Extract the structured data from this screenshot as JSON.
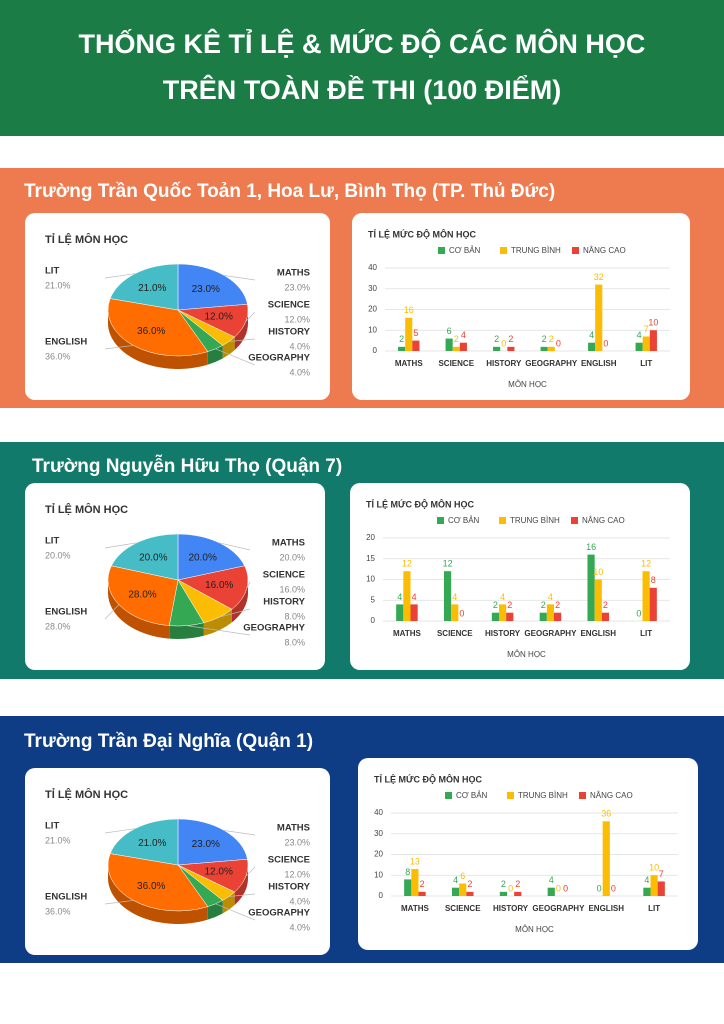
{
  "header": {
    "title_lines": [
      "THỐNG KÊ TỈ LỆ & MỨC ĐỘ CÁC MÔN HỌC",
      "TRÊN TOÀN ĐỀ THI (100 ĐIỂM)"
    ]
  },
  "sections": [
    {
      "title": "Trường Trần Quốc Toản 1, Hoa Lư, Bình Thọ (TP. Thủ Đức)"
    },
    {
      "title": "Trường Nguyễn Hữu Thọ (Quận 7)"
    },
    {
      "title": "Trường Trần Đại Nghĩa (Quận 1)"
    }
  ],
  "chart_data": [
    {
      "type": "pie",
      "title": "TỈ LỆ MÔN HỌC",
      "categories": [
        "MATHS",
        "SCIENCE",
        "HISTORY",
        "GEOGRAPHY",
        "ENGLISH",
        "LIT"
      ],
      "values": [
        23,
        12,
        4,
        4,
        36,
        21
      ],
      "value_labels": [
        "23.0%",
        "12.0%",
        "4.0%",
        "4.0%",
        "36.0%",
        "21.0%"
      ],
      "colors": [
        "#4285f4",
        "#ea4335",
        "#fbbc04",
        "#34a853",
        "#ff6d01",
        "#46bdc6"
      ]
    },
    {
      "type": "bar",
      "title": "TỈ LỆ MỨC ĐỘ MÔN HỌC",
      "x_label": "MÔN HỌC",
      "categories": [
        "MATHS",
        "SCIENCE",
        "HISTORY",
        "GEOGRAPHY",
        "ENGLISH",
        "LIT"
      ],
      "series": [
        {
          "name": "CƠ BẢN",
          "color": "#34a853",
          "values": [
            2,
            6,
            2,
            2,
            4,
            4
          ]
        },
        {
          "name": "TRUNG BÌNH",
          "color": "#fbbc04",
          "values": [
            16,
            2,
            0,
            2,
            32,
            7
          ]
        },
        {
          "name": "NÂNG CAO",
          "color": "#ea4335",
          "values": [
            5,
            4,
            2,
            0,
            0,
            10
          ]
        }
      ],
      "ylim": [
        0,
        40
      ],
      "yticks": [
        0,
        10,
        20,
        30,
        40
      ],
      "grid": true
    },
    {
      "type": "pie",
      "title": "TỈ LỆ MÔN HỌC",
      "categories": [
        "MATHS",
        "SCIENCE",
        "HISTORY",
        "GEOGRAPHY",
        "ENGLISH",
        "LIT"
      ],
      "values": [
        20,
        16,
        8,
        8,
        28,
        20
      ],
      "value_labels": [
        "20.0%",
        "16.0%",
        "8.0%",
        "8.0%",
        "28.0%",
        "20.0%"
      ],
      "colors": [
        "#4285f4",
        "#ea4335",
        "#fbbc04",
        "#34a853",
        "#ff6d01",
        "#46bdc6"
      ]
    },
    {
      "type": "bar",
      "title": "TỈ LỆ MỨC ĐỘ MÔN HỌC",
      "x_label": "MÔN HỌC",
      "categories": [
        "MATHS",
        "SCIENCE",
        "HISTORY",
        "GEOGRAPHY",
        "ENGLISH",
        "LIT"
      ],
      "series": [
        {
          "name": "CƠ BẢN",
          "color": "#34a853",
          "values": [
            4,
            12,
            2,
            2,
            16,
            0
          ]
        },
        {
          "name": "TRUNG BÌNH",
          "color": "#fbbc04",
          "values": [
            12,
            4,
            4,
            4,
            10,
            12
          ]
        },
        {
          "name": "NÂNG CAO",
          "color": "#ea4335",
          "values": [
            4,
            0,
            2,
            2,
            2,
            8
          ]
        }
      ],
      "ylim": [
        0,
        20
      ],
      "yticks": [
        0,
        5,
        10,
        15,
        20
      ],
      "grid": true
    },
    {
      "type": "pie",
      "title": "TỈ LỆ MÔN HỌC",
      "categories": [
        "MATHS",
        "SCIENCE",
        "HISTORY",
        "GEOGRAPHY",
        "ENGLISH",
        "LIT"
      ],
      "values": [
        23,
        12,
        4,
        4,
        36,
        21
      ],
      "value_labels": [
        "23.0%",
        "12.0%",
        "4.0%",
        "4.0%",
        "36.0%",
        "21.0%"
      ],
      "colors": [
        "#4285f4",
        "#ea4335",
        "#fbbc04",
        "#34a853",
        "#ff6d01",
        "#46bdc6"
      ]
    },
    {
      "type": "bar",
      "title": "TỈ LỆ MỨC ĐỘ MÔN HỌC",
      "x_label": "MÔN HỌC",
      "categories": [
        "MATHS",
        "SCIENCE",
        "HISTORY",
        "GEOGRAPHY",
        "ENGLISH",
        "LIT"
      ],
      "series": [
        {
          "name": "CƠ BẢN",
          "color": "#34a853",
          "values": [
            8,
            4,
            2,
            4,
            0,
            4
          ]
        },
        {
          "name": "TRUNG BÌNH",
          "color": "#fbbc04",
          "values": [
            13,
            6,
            0,
            0,
            36,
            10
          ]
        },
        {
          "name": "NÂNG CAO",
          "color": "#ea4335",
          "values": [
            2,
            2,
            2,
            0,
            0,
            7
          ]
        }
      ],
      "ylim": [
        0,
        40
      ],
      "yticks": [
        0,
        10,
        20,
        30,
        40
      ],
      "grid": true
    }
  ]
}
